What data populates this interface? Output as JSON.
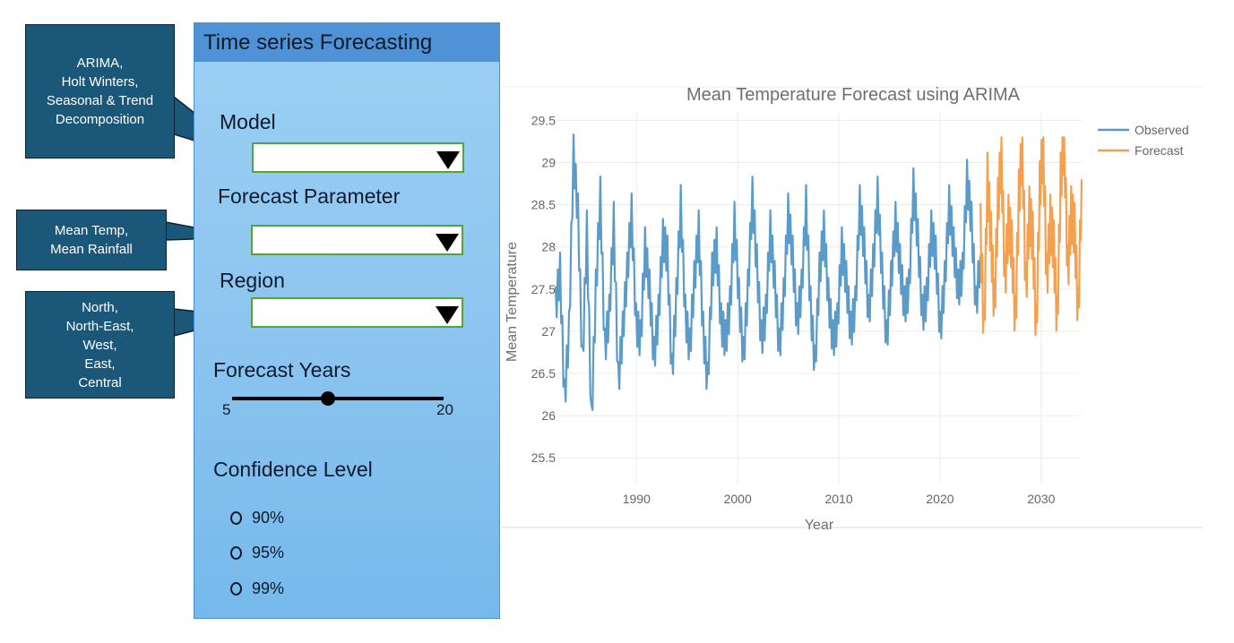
{
  "callouts": {
    "model": [
      "ARIMA,",
      "Holt Winters,",
      "Seasonal & Trend",
      "Decomposition"
    ],
    "parameter": [
      "Mean Temp,",
      "Mean Rainfall"
    ],
    "region": [
      "North,",
      "North-East,",
      "West,",
      "East,",
      "Central"
    ]
  },
  "panel": {
    "title": "Time series Forecasting",
    "model_label": "Model",
    "model_value": "",
    "parameter_label": "Forecast Parameter",
    "parameter_value": "",
    "region_label": "Region",
    "region_value": "",
    "years_label": "Forecast Years",
    "years_min": "5",
    "years_max": "20",
    "years_value": 12,
    "confidence_label": "Confidence Level",
    "confidence_options": [
      "90%",
      "95%",
      "99%"
    ]
  },
  "colors": {
    "observed": "#5b9bc8",
    "forecast": "#f5a04e",
    "panel_header": "#4f93d6",
    "callout": "#1b5779",
    "dropdown_border": "#53a43b"
  },
  "chart_data": {
    "type": "line",
    "title": "Mean Temperature Forecast using  ARIMA",
    "xlabel": "Year",
    "ylabel": "Mean Temperature",
    "x_ticks": [
      1990,
      2000,
      2010,
      2020,
      2030
    ],
    "y_ticks": [
      "25.5",
      "26",
      "26.5",
      "27",
      "27.5",
      "28",
      "28.5",
      "29",
      "29.5"
    ],
    "xlim": [
      1982,
      2034
    ],
    "ylim": [
      25.3,
      29.6
    ],
    "grid": true,
    "legend_position": "top-right",
    "series": [
      {
        "name": "Observed",
        "x_start": 1982,
        "x_end": 2024,
        "values": [
          27.3,
          27.7,
          26.2,
          27.0,
          29.1,
          28.4,
          26.6,
          28.2,
          25.9,
          27.5,
          28.6,
          26.8,
          27.2,
          28.3,
          26.4,
          27.0,
          27.7,
          28.4,
          27.1,
          26.9,
          28.0,
          27.5,
          26.7,
          27.2,
          28.1,
          27.9,
          26.5,
          27.4,
          28.5,
          27.2,
          26.8,
          27.6,
          28.2,
          27.0,
          26.4,
          27.7,
          28.0,
          27.1,
          26.9,
          27.3,
          28.3,
          27.4,
          26.7,
          27.5,
          28.6,
          27.8,
          26.9,
          27.2,
          28.2,
          27.6,
          26.8,
          27.4,
          28.4,
          27.9,
          27.1,
          27.5,
          28.5,
          27.3,
          26.6,
          27.7,
          28.2,
          27.4,
          26.9,
          27.1,
          28.0,
          27.6,
          27.0,
          27.3,
          28.5,
          28.0,
          27.2,
          27.8,
          28.6,
          27.7,
          26.9,
          27.6,
          28.3,
          27.8,
          27.3,
          27.5,
          28.7,
          28.1,
          27.2,
          27.4,
          28.2,
          27.9,
          27.0,
          27.6,
          28.5,
          28.0,
          27.5,
          27.7,
          28.8,
          28.3,
          27.3,
          27.9
        ],
        "min": 25.4,
        "max": 29.4
      },
      {
        "name": "Forecast",
        "x_start": 2024,
        "x_end": 2034,
        "values": [
          28.2,
          27.0,
          28.8,
          28.1,
          27.3,
          28.5,
          29.1,
          27.6,
          28.3,
          28.0,
          27.1,
          28.6,
          29.2,
          27.5,
          28.4,
          28.1,
          27.0,
          28.7,
          29.2,
          27.6,
          28.3,
          28.0,
          27.1,
          28.8,
          29.3,
          27.7,
          28.4,
          28.2,
          27.2,
          28.8
        ],
        "min": 26.7,
        "max": 29.3
      }
    ]
  }
}
